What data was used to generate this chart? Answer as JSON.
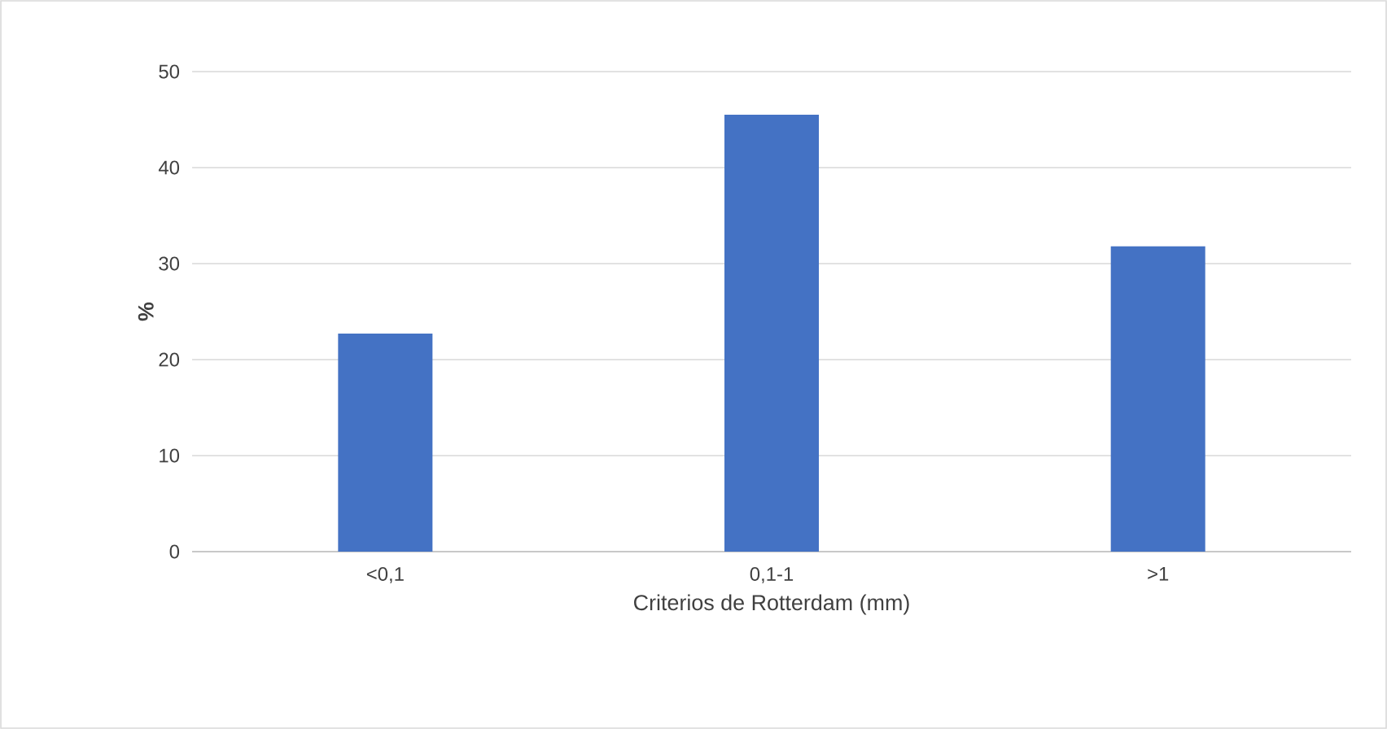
{
  "chart_data": {
    "type": "bar",
    "xlabel": "Criterios de Rotterdam (mm)",
    "ylabel": "%",
    "categories": [
      "<0,1",
      "0,1-1",
      ">1"
    ],
    "values": [
      22.7,
      45.5,
      31.8
    ],
    "color": "#4472c4",
    "ylim": [
      0,
      50
    ],
    "yticks": [
      0,
      10,
      20,
      30,
      40,
      50
    ],
    "grid": "y"
  }
}
